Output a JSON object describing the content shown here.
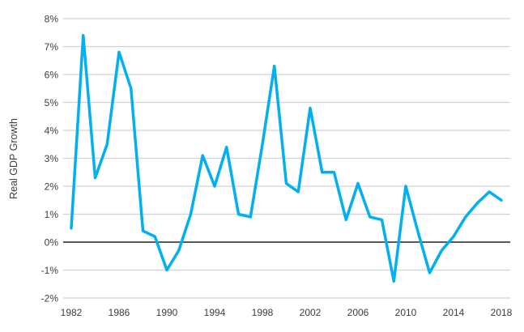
{
  "chart_data": {
    "type": "line",
    "title": "",
    "xlabel": "",
    "ylabel": "Real GDP Growth",
    "x": [
      1982,
      1983,
      1984,
      1985,
      1986,
      1987,
      1988,
      1989,
      1990,
      1991,
      1992,
      1993,
      1994,
      1995,
      1996,
      1997,
      1998,
      1999,
      2000,
      2001,
      2002,
      2003,
      2004,
      2005,
      2006,
      2007,
      2008,
      2009,
      2010,
      2011,
      2012,
      2013,
      2014,
      2015,
      2016,
      2017,
      2018
    ],
    "series": [
      {
        "name": "Real GDP Growth",
        "values": [
          0.5,
          7.4,
          2.3,
          3.5,
          6.8,
          5.5,
          0.4,
          0.2,
          -1.0,
          -0.3,
          1.0,
          3.1,
          2.0,
          3.4,
          1.0,
          0.9,
          3.5,
          6.3,
          2.1,
          1.8,
          4.8,
          2.5,
          2.5,
          0.8,
          2.1,
          0.9,
          0.8,
          -1.4,
          2.0,
          0.4,
          -1.1,
          -0.3,
          0.2,
          0.9,
          1.4,
          1.8,
          1.5
        ]
      }
    ],
    "ylim": [
      -2,
      8
    ],
    "xlim": [
      1982,
      2018
    ],
    "y_tick_values": [
      8,
      7,
      6,
      5,
      4,
      3,
      2,
      1,
      0,
      -1,
      -2
    ],
    "y_tick_labels": [
      "8%",
      "7%",
      "6%",
      "5%",
      "4%",
      "3%",
      "2%",
      "1%",
      "0%",
      "-1%",
      "-2%"
    ],
    "x_tick_years": [
      1982,
      1986,
      1990,
      1994,
      1998,
      2002,
      2006,
      2010,
      2014,
      2018
    ],
    "x_tick_labels": [
      "1982",
      "1986",
      "1990",
      "1994",
      "1998",
      "2002",
      "2006",
      "2010",
      "2014",
      "2018"
    ],
    "grid": true,
    "legend_position": "none",
    "colors": {
      "line": "#00B0F0",
      "gridline": "#d2d2d2",
      "zero_line": "#595959",
      "tick_text": "#3d3d3d",
      "background": "#ffffff"
    }
  }
}
